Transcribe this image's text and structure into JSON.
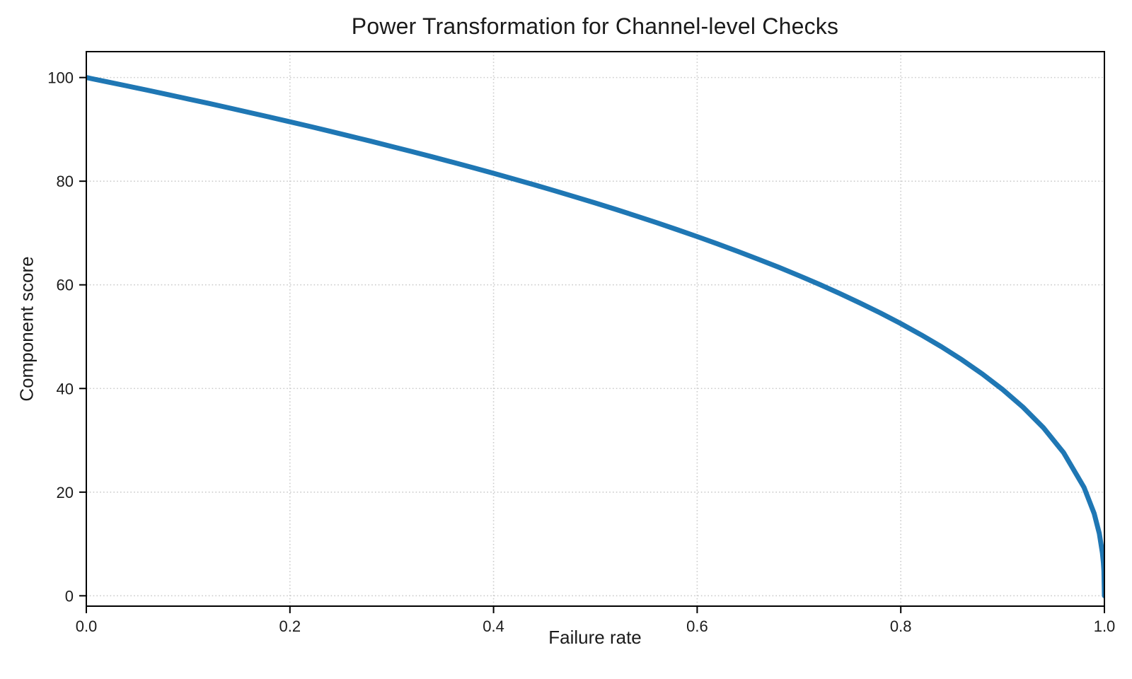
{
  "figure": {
    "background_color": "#ffffff",
    "text_color": "#1b1b1b"
  },
  "chart_data": {
    "type": "line",
    "title": "Power Transformation for Channel-level Checks",
    "xlabel": "Failure rate",
    "ylabel": "Component score",
    "xlim": [
      0.0,
      1.0
    ],
    "ylim": [
      -2,
      105
    ],
    "x_ticks": [
      0.0,
      0.2,
      0.4,
      0.6,
      0.8,
      1.0
    ],
    "x_tick_labels": [
      "0.0",
      "0.2",
      "0.4",
      "0.6",
      "0.8",
      "1.0"
    ],
    "y_ticks": [
      0,
      20,
      40,
      60,
      80,
      100
    ],
    "y_tick_labels": [
      "0",
      "20",
      "40",
      "60",
      "80",
      "100"
    ],
    "grid_style": "dotted",
    "grid_color": "#cccccc",
    "spine_color": "#000000",
    "legend": "none",
    "series": [
      {
        "name": "component-score-curve",
        "color": "#1f77b4",
        "line_width": 7,
        "power_exponent": 0.4,
        "points": [
          [
            0.0,
            100.0
          ],
          [
            0.02,
            99.19
          ],
          [
            0.04,
            98.38
          ],
          [
            0.06,
            97.56
          ],
          [
            0.08,
            96.72
          ],
          [
            0.1,
            95.87
          ],
          [
            0.12,
            95.02
          ],
          [
            0.14,
            94.15
          ],
          [
            0.16,
            93.26
          ],
          [
            0.18,
            92.37
          ],
          [
            0.2,
            91.46
          ],
          [
            0.22,
            90.54
          ],
          [
            0.24,
            89.61
          ],
          [
            0.26,
            88.65
          ],
          [
            0.28,
            87.69
          ],
          [
            0.3,
            86.7
          ],
          [
            0.32,
            85.7
          ],
          [
            0.34,
            84.69
          ],
          [
            0.36,
            83.65
          ],
          [
            0.38,
            82.6
          ],
          [
            0.4,
            81.52
          ],
          [
            0.42,
            80.42
          ],
          [
            0.44,
            79.3
          ],
          [
            0.46,
            78.16
          ],
          [
            0.48,
            76.98
          ],
          [
            0.5,
            75.79
          ],
          [
            0.52,
            74.56
          ],
          [
            0.54,
            73.3
          ],
          [
            0.56,
            72.01
          ],
          [
            0.58,
            70.68
          ],
          [
            0.6,
            69.31
          ],
          [
            0.62,
            67.91
          ],
          [
            0.64,
            66.45
          ],
          [
            0.66,
            64.95
          ],
          [
            0.68,
            63.4
          ],
          [
            0.7,
            61.78
          ],
          [
            0.72,
            60.1
          ],
          [
            0.74,
            58.34
          ],
          [
            0.76,
            56.5
          ],
          [
            0.78,
            54.57
          ],
          [
            0.8,
            52.53
          ],
          [
            0.82,
            50.36
          ],
          [
            0.84,
            48.05
          ],
          [
            0.86,
            45.55
          ],
          [
            0.88,
            42.82
          ],
          [
            0.9,
            39.81
          ],
          [
            0.92,
            36.41
          ],
          [
            0.94,
            32.45
          ],
          [
            0.96,
            27.6
          ],
          [
            0.98,
            20.91
          ],
          [
            0.99,
            15.85
          ],
          [
            0.995,
            12.01
          ],
          [
            0.998,
            8.33
          ],
          [
            0.999,
            6.31
          ],
          [
            0.9995,
            4.78
          ],
          [
            1.0,
            0.0
          ]
        ]
      }
    ]
  }
}
